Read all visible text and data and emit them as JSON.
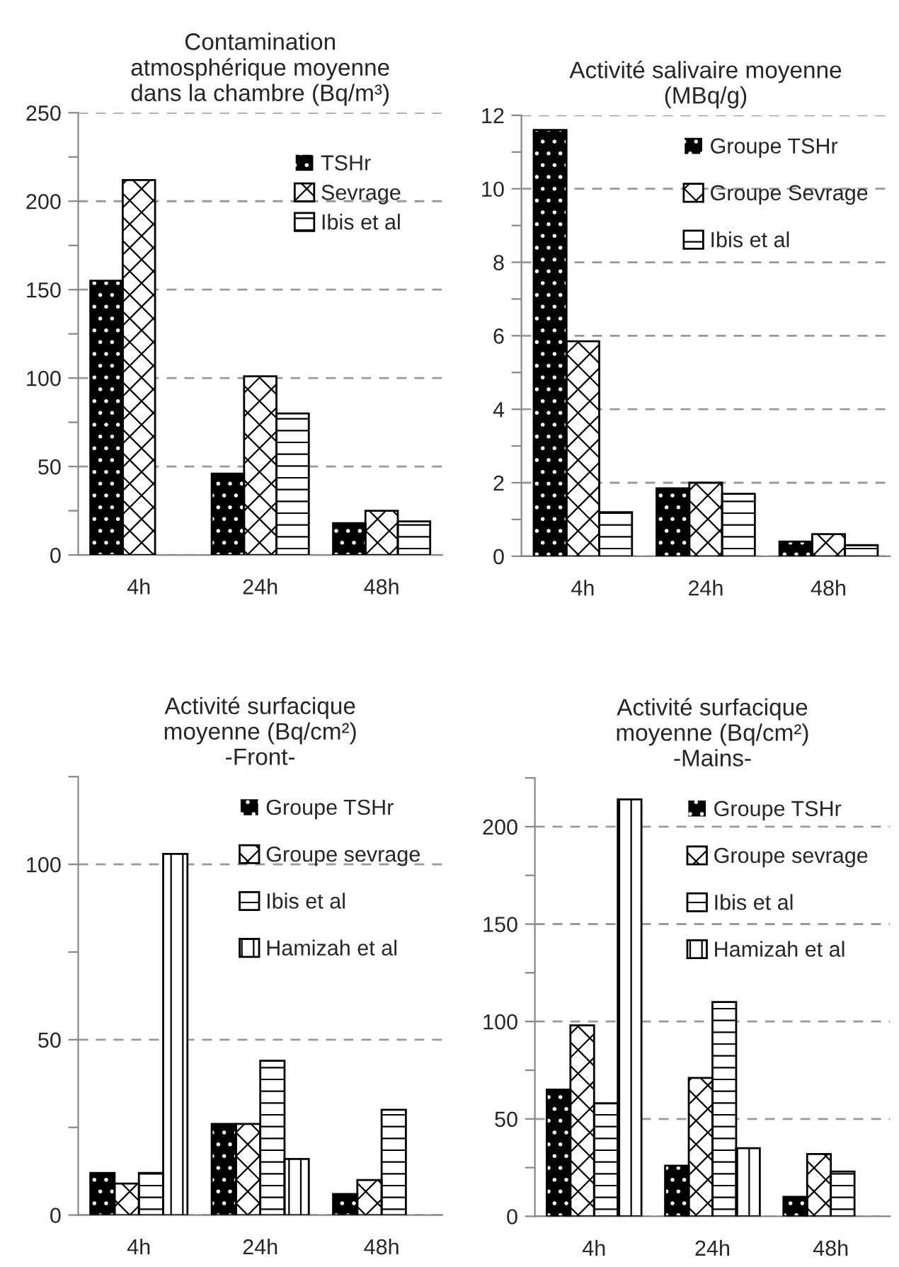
{
  "chart_data": [
    {
      "type": "bar",
      "title": "Contamination\natmosphérique moyenne\ndans la chambre (Bq/m³)",
      "categories": [
        "4h",
        "24h",
        "48h"
      ],
      "series": [
        {
          "name": "TSHr",
          "color": "#000000",
          "values": [
            155,
            46,
            18
          ]
        },
        {
          "name": "Sevrage",
          "color": "#ffffff",
          "values": [
            212,
            101,
            25
          ]
        },
        {
          "name": "Ibis et al",
          "color": "#ffffff",
          "values": [
            null,
            80,
            19
          ]
        }
      ],
      "ylim": [
        0,
        250
      ],
      "yticks": [
        0,
        {
          "value": 25,
          "label": null
        },
        50,
        {
          "value": 75,
          "label": null
        },
        100,
        {
          "value": 125,
          "label": null
        },
        150,
        {
          "value": 175,
          "label": null
        },
        200,
        {
          "value": 225,
          "label": null
        },
        250
      ],
      "grid": "y",
      "legend": "top right"
    },
    {
      "type": "bar",
      "title": "Activité salivaire moyenne\n(MBq/g)",
      "categories": [
        "4h",
        "24h",
        "48h"
      ],
      "series": [
        {
          "name": "Groupe TSHr",
          "color": "#000000",
          "values": [
            11.6,
            1.85,
            0.4
          ]
        },
        {
          "name": "Groupe Sevrage",
          "color": "#ffffff",
          "values": [
            5.85,
            2.0,
            0.6
          ]
        },
        {
          "name": "Ibis et al",
          "color": "#ffffff",
          "values": [
            1.2,
            1.7,
            0.3
          ]
        }
      ],
      "ylim": [
        0,
        12
      ],
      "yticks": [
        0,
        {
          "value": 1,
          "label": null
        },
        2,
        {
          "value": 3,
          "label": null
        },
        4,
        {
          "value": 5,
          "label": null
        },
        6,
        {
          "value": 7,
          "label": null
        },
        8,
        {
          "value": 9,
          "label": null
        },
        10,
        {
          "value": 11,
          "label": null
        },
        12
      ],
      "grid": "y",
      "legend": "top right"
    },
    {
      "type": "bar",
      "title": "Activité surfacique\nmoyenne (Bq/cm²)\n-Front-",
      "categories": [
        "4h",
        "24h",
        "48h"
      ],
      "series": [
        {
          "name": "Groupe TSHr",
          "color": "#000000",
          "values": [
            12,
            26,
            6
          ]
        },
        {
          "name": "Groupe sevrage",
          "color": "#ffffff",
          "values": [
            9,
            26,
            10
          ]
        },
        {
          "name": "Ibis et al",
          "color": "#ffffff",
          "values": [
            12,
            44,
            30
          ]
        },
        {
          "name": "Hamizah et al",
          "color": "#ffffff",
          "values": [
            103,
            16,
            null
          ]
        }
      ],
      "ylim": [
        0,
        125
      ],
      "yticks": [
        0,
        {
          "value": 25,
          "label": null
        },
        50,
        {
          "value": 75,
          "label": null
        },
        100,
        {
          "value": 125,
          "label": null
        }
      ],
      "grid": "y",
      "legend": "top right"
    },
    {
      "type": "bar",
      "title": "Activité surfacique\nmoyenne (Bq/cm²)\n-Mains-",
      "categories": [
        "4h",
        "24h",
        "48h"
      ],
      "series": [
        {
          "name": "Groupe TSHr",
          "color": "#000000",
          "values": [
            65,
            26,
            10
          ]
        },
        {
          "name": "Groupe sevrage",
          "color": "#ffffff",
          "values": [
            98,
            71,
            32
          ]
        },
        {
          "name": "Ibis et al",
          "color": "#ffffff",
          "values": [
            58,
            110,
            23
          ]
        },
        {
          "name": "Hamizah et al",
          "color": "#ffffff",
          "values": [
            214,
            35,
            null
          ]
        }
      ],
      "ylim": [
        0,
        225
      ],
      "yticks": [
        0,
        {
          "value": 25,
          "label": null
        },
        50,
        {
          "value": 75,
          "label": null
        },
        100,
        {
          "value": 125,
          "label": null
        },
        150,
        {
          "value": 175,
          "label": null
        },
        200,
        {
          "value": 225,
          "label": null
        }
      ],
      "grid": "y",
      "legend": "top right"
    }
  ]
}
